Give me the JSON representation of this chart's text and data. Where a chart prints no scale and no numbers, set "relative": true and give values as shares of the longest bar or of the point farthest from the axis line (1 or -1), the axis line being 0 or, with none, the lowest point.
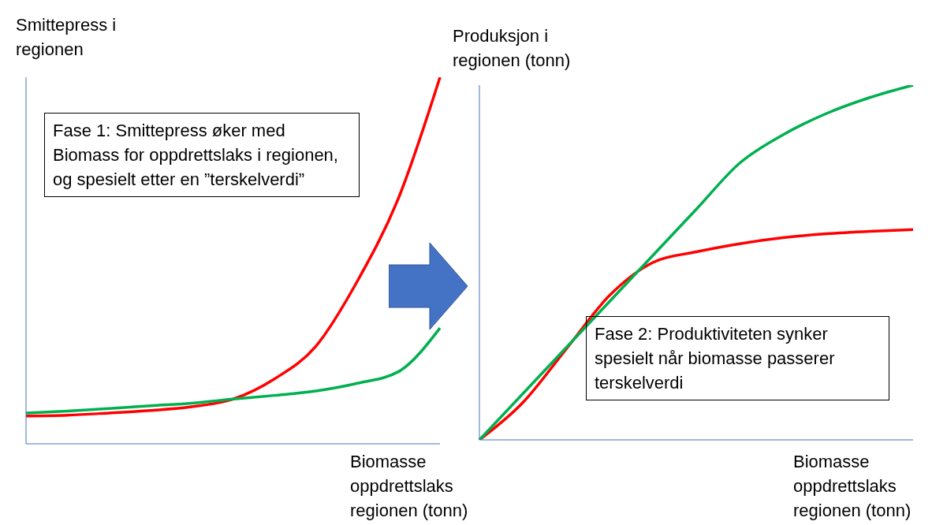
{
  "chart_data": [
    {
      "type": "line",
      "relative": true,
      "ylabel": "Smittepress i regionen",
      "xlabel": "Biomasse oppdrettslaks regionen (tonn)",
      "categories": [
        null,
        null,
        null,
        null,
        null,
        null,
        null,
        null,
        null,
        null,
        null
      ],
      "series": [
        {
          "color": "#ff0000",
          "values": [
            0.076,
            0.078,
            0.084,
            0.091,
            0.101,
            0.122,
            0.177,
            0.266,
            0.443,
            0.671,
            1
          ]
        },
        {
          "color": "#00b050",
          "values": [
            0.084,
            0.089,
            0.096,
            0.104,
            0.111,
            0.122,
            0.132,
            0.144,
            0.165,
            0.197,
            0.316
          ]
        }
      ],
      "annotations": [
        "Fase 1: Smittepress øker med Biomass for oppdrettslaks i regionen, og spesielt etter en ”terskelverdi”"
      ]
    },
    {
      "type": "line",
      "relative": true,
      "ylabel": "Produksjon i regionen (tonn)",
      "xlabel": "Biomasse oppdrettslaks regionen (tonn)",
      "categories": [
        null,
        null,
        null,
        null,
        null,
        null,
        null,
        null,
        null,
        null,
        null
      ],
      "series": [
        {
          "color": "#ff0000",
          "values": [
            0,
            0.105,
            0.256,
            0.407,
            0.5,
            0.53,
            0.553,
            0.57,
            0.581,
            0.588,
            0.593
          ]
        },
        {
          "color": "#00b050",
          "values": [
            0,
            0.13,
            0.26,
            0.39,
            0.52,
            0.65,
            0.78,
            0.86,
            0.92,
            0.965,
            1
          ]
        }
      ],
      "annotations": [
        "Fase 2: Produktiviteten synker spesielt når biomasse passerer terskelverdi"
      ]
    }
  ]
}
